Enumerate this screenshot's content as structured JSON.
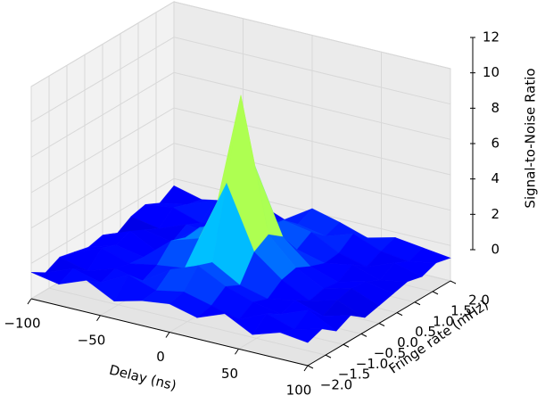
{
  "chart_data": {
    "type": "surface",
    "xlabel": "Delay (ns)",
    "ylabel": "Fringe rate (mHz)",
    "zlabel": "Signal-to-Noise Ratio",
    "x": [
      -100,
      -80,
      -60,
      -40,
      -20,
      0,
      20,
      40,
      60,
      80,
      100
    ],
    "y": [
      -2,
      -1.6,
      -1.2,
      -0.8,
      -0.4,
      0,
      0.4,
      0.8,
      1.2,
      1.6,
      2
    ],
    "z": [
      [
        1.5,
        1.2,
        1.8,
        1.0,
        1.4,
        1.6,
        1.2,
        1.8,
        1.0,
        1.5,
        1.3
      ],
      [
        1.0,
        1.6,
        1.2,
        2.0,
        1.5,
        1.8,
        1.4,
        1.0,
        1.7,
        1.2,
        1.6
      ],
      [
        1.4,
        1.0,
        1.5,
        1.2,
        2.2,
        2.8,
        2.0,
        1.5,
        1.2,
        1.8,
        1.0
      ],
      [
        1.2,
        1.8,
        1.3,
        1.6,
        1.8,
        2.5,
        1.6,
        1.2,
        1.5,
        1.0,
        1.4
      ],
      [
        1.0,
        1.5,
        1.2,
        2.5,
        3.0,
        6.5,
        3.0,
        1.8,
        1.0,
        1.4,
        0.8
      ],
      [
        1.2,
        1.8,
        1.0,
        2.2,
        3.5,
        11,
        3.5,
        2.0,
        1.2,
        1.6,
        1.0
      ],
      [
        0.8,
        1.4,
        1.1,
        2.3,
        2.8,
        6.5,
        2.9,
        1.6,
        1.1,
        1.5,
        1.2
      ],
      [
        1.3,
        1.0,
        1.6,
        1.4,
        2.0,
        2.6,
        1.7,
        1.3,
        1.6,
        1.1,
        1.4
      ],
      [
        1.5,
        1.7,
        1.2,
        1.8,
        1.5,
        2.5,
        2.2,
        1.4,
        1.0,
        1.6,
        1.2
      ],
      [
        1.1,
        1.4,
        2.0,
        1.3,
        1.6,
        1.8,
        1.5,
        2.0,
        1.4,
        1.2,
        1.5
      ],
      [
        1.6,
        1.2,
        1.5,
        1.8,
        1.2,
        2.2,
        1.8,
        1.3,
        1.7,
        1.5,
        1.3
      ]
    ],
    "colormap": "jet",
    "xlim": [
      -100,
      100
    ],
    "ylim": [
      -2,
      2
    ],
    "zlim": [
      0,
      12
    ],
    "xticks": [
      {
        "value": -100,
        "label": "−100"
      },
      {
        "value": -50,
        "label": "−50"
      },
      0,
      50,
      100
    ],
    "yticks": [
      {
        "value": -2,
        "label": "−2.0"
      },
      {
        "value": -1.5,
        "label": "−1.5"
      },
      {
        "value": -1,
        "label": "−1.0"
      },
      {
        "value": -0.5,
        "label": "−0.5"
      },
      {
        "value": 0,
        "label": "0.0"
      },
      {
        "value": 0.5,
        "label": "0.5"
      },
      {
        "value": 1,
        "label": "1.0"
      },
      {
        "value": 1.5,
        "label": "1.5"
      },
      {
        "value": 2,
        "label": "2.0"
      }
    ],
    "zticks": [
      0,
      2,
      4,
      6,
      8,
      10,
      12
    ],
    "grid": true
  }
}
